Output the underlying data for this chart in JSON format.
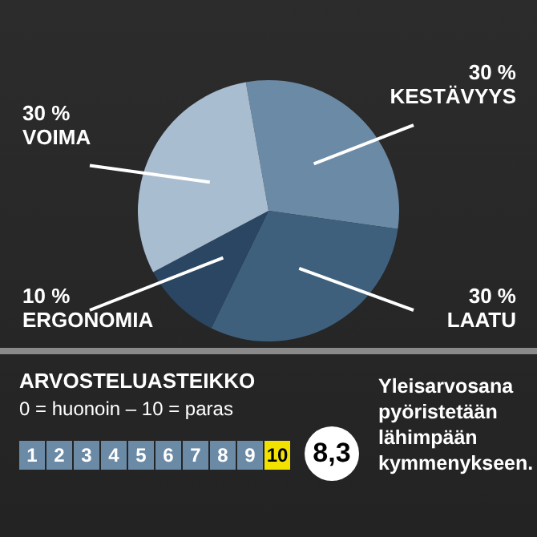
{
  "chart_data": {
    "type": "pie",
    "categories": [
      "KESTÄVYYS",
      "LAATU",
      "ERGONOMIA",
      "VOIMA"
    ],
    "values": [
      30,
      30,
      10,
      30
    ],
    "value_labels": [
      "30 %",
      "30 %",
      "10 %",
      "30 %"
    ],
    "colors": [
      "#6b8aa6",
      "#3f607c",
      "#2b4662",
      "#a9bdd0"
    ],
    "legend": false,
    "annotations": [
      "ARVOSTELUASTEIKKO",
      "0 = huonoin – 10 = paras",
      "1",
      "2",
      "3",
      "4",
      "5",
      "6",
      "7",
      "8",
      "9",
      "10",
      "8,3",
      "Yleisarvosana pyöristetään lähimpään kymmenykseen."
    ]
  }
}
